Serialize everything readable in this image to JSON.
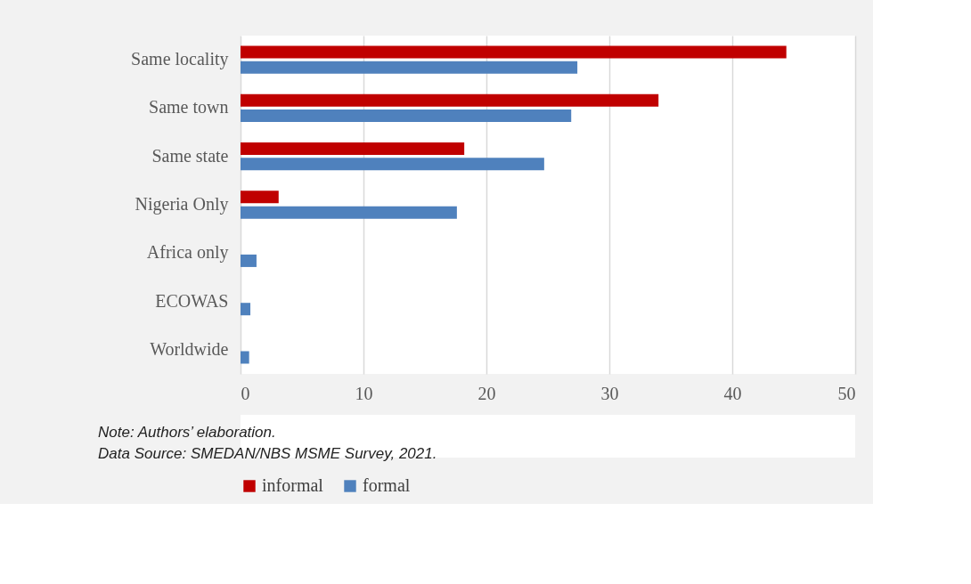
{
  "chart_data": {
    "type": "bar",
    "orientation": "horizontal",
    "categories": [
      "Same locality",
      "Same town",
      "Same state",
      "Nigeria Only",
      "Africa only",
      "ECOWAS",
      "Worldwide"
    ],
    "series": [
      {
        "name": "informal",
        "color": "#c00000",
        "values": [
          44.4,
          34.0,
          18.2,
          3.1,
          null,
          null,
          null
        ]
      },
      {
        "name": "formal",
        "color": "#4f81bd",
        "values": [
          27.4,
          26.9,
          24.7,
          17.6,
          1.3,
          0.8,
          0.7
        ]
      }
    ],
    "xlim": [
      0,
      50
    ],
    "xticks": [
      0,
      10,
      20,
      30,
      40,
      50
    ],
    "grid": "x",
    "legend": "bottom",
    "annotations": [
      "Note: Authors’ elaboration.",
      "Data Source: SMEDAN/NBS MSME Survey, 2021."
    ]
  }
}
